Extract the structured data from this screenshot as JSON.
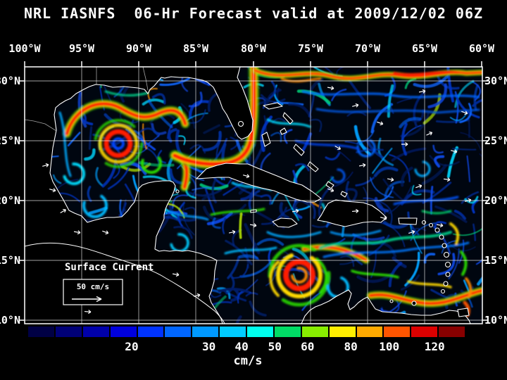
{
  "title": "NRL IASNFS  06-Hr Forecast valid at 2009/12/02 06Z",
  "map": {
    "lon_labels": [
      "100°W",
      "95°W",
      "90°W",
      "85°W",
      "80°W",
      "75°W",
      "70°W",
      "65°W",
      "60°W"
    ],
    "lat_labels_left": [
      "30°N",
      "25°N",
      "20°N",
      "15°N",
      "10°N"
    ],
    "lat_labels_right": [
      "30°N",
      "25°N",
      "20°N",
      "15°N",
      "10°N"
    ],
    "legend": {
      "label": "Surface Current",
      "scale_value": "50 cm/s"
    }
  },
  "colorbar": {
    "unit": "cm/s",
    "tick_labels": [
      "20",
      "30",
      "40",
      "50",
      "60",
      "80",
      "100",
      "120"
    ],
    "segment_colors": [
      "#000044",
      "#000077",
      "#0000aa",
      "#0000dd",
      "#0033ff",
      "#0066ff",
      "#0099ff",
      "#00ccff",
      "#00ffee",
      "#00dd66",
      "#88ee00",
      "#ffee00",
      "#ffaa00",
      "#ff5500",
      "#dd0000",
      "#880000"
    ]
  }
}
